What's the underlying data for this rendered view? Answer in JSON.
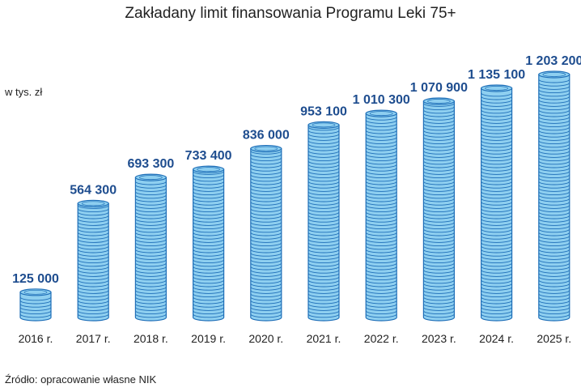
{
  "title": "Zakładany limit finansowania Programu Leki 75+",
  "unit_label": "w tys. zł",
  "source": "Źródło: opracowanie własne NIK",
  "colors": {
    "coin_fill": "#8ecff0",
    "coin_line": "#1f6fb8",
    "value_text": "#1e4d8f"
  },
  "chart_data": {
    "type": "bar",
    "categories": [
      "2016 r.",
      "2017 r.",
      "2018 r.",
      "2019 r.",
      "2020 r.",
      "2021 r.",
      "2022 r.",
      "2023 r.",
      "2024 r.",
      "2025 r."
    ],
    "values": [
      125000,
      564300,
      693300,
      733400,
      836000,
      953100,
      1010300,
      1070900,
      1135100,
      1203200
    ],
    "value_labels": [
      "125 000",
      "564 300",
      "693 300",
      "733 400",
      "836 000",
      "953 100",
      "1 010 300",
      "1 070 900",
      "1 135 100",
      "1 203 200"
    ],
    "ylabel": "w tys. zł",
    "ylim": [
      0,
      1203200
    ],
    "grid": false,
    "legend": "none"
  }
}
